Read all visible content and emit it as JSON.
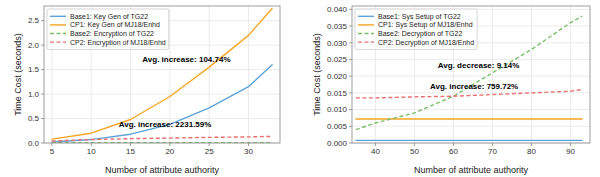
{
  "chart_data": [
    {
      "type": "line",
      "x": [
        5,
        10,
        15,
        20,
        25,
        30,
        33
      ],
      "series": [
        {
          "name": "Base1: Key Gen of TG22",
          "color": "#5ba3d9",
          "line_style": "solid",
          "values": [
            0.02,
            0.07,
            0.18,
            0.38,
            0.72,
            1.15,
            1.6
          ]
        },
        {
          "name": "CP1: Key Gen of MJ18/Enhd",
          "color": "#f5a623",
          "line_style": "solid",
          "values": [
            0.08,
            0.2,
            0.48,
            0.95,
            1.55,
            2.2,
            2.75
          ]
        },
        {
          "name": "Base2: Encryption of TG22",
          "color": "#7bbf6a",
          "line_style": "dashed",
          "values": [
            0.004,
            0.004,
            0.005,
            0.005,
            0.005,
            0.005,
            0.006
          ]
        },
        {
          "name": "CP2: Encryption of MJ18/Enhd",
          "color": "#e87070",
          "line_style": "dashed",
          "values": [
            0.04,
            0.07,
            0.09,
            0.1,
            0.115,
            0.125,
            0.135
          ]
        }
      ],
      "xlim": [
        4,
        34
      ],
      "xticks": [
        5,
        10,
        15,
        20,
        25,
        30
      ],
      "ylim": [
        0,
        2.8
      ],
      "yticks": [
        {
          "value": 0.0,
          "label": "0.0"
        },
        0.5,
        {
          "value": 1.0,
          "label": "1.0"
        },
        1.5,
        {
          "value": 2.0,
          "label": "2.0"
        },
        2.5
      ],
      "xlabel": "Number of attribute authority",
      "ylabel": "Time Cost (seconds)",
      "annotations": [
        {
          "text": "Avg. increase: 104.74%",
          "x": 16.5,
          "y": 1.65
        },
        {
          "text": "Avg. increase: 2231.59%",
          "x": 13.5,
          "y": 0.32
        }
      ],
      "grid": true,
      "legend": "upper left"
    },
    {
      "type": "line",
      "x": [
        35,
        40,
        50,
        60,
        70,
        80,
        90,
        93
      ],
      "series": [
        {
          "name": "Base1: Sys Setup of TG22",
          "color": "#5ba3d9",
          "line_style": "solid",
          "values": [
            0.0008,
            0.0008,
            0.0008,
            0.0008,
            0.0008,
            0.0008,
            0.0008,
            0.0008
          ]
        },
        {
          "name": "CP1: Sys Setup of MJ18/Enhd",
          "color": "#f5a623",
          "line_style": "solid",
          "values": [
            0.0072,
            0.0072,
            0.0072,
            0.0072,
            0.0072,
            0.0072,
            0.0072,
            0.0072
          ]
        },
        {
          "name": "Base2: Decryption of TG22",
          "color": "#7bbf6a",
          "line_style": "dashed",
          "values": [
            0.004,
            0.006,
            0.009,
            0.014,
            0.021,
            0.028,
            0.036,
            0.038
          ]
        },
        {
          "name": "CP2: Decryption of MJ18/Enhd",
          "color": "#e87070",
          "line_style": "dashed",
          "values": [
            0.0135,
            0.0135,
            0.0138,
            0.014,
            0.0145,
            0.015,
            0.0155,
            0.016
          ]
        }
      ],
      "xlim": [
        34,
        95
      ],
      "xticks": [
        40,
        50,
        60,
        70,
        80,
        90
      ],
      "ylim": [
        0,
        0.041
      ],
      "yticks": [
        {
          "value": 0.0,
          "label": "0.000"
        },
        0.005,
        {
          "value": 0.01,
          "label": "0.010"
        },
        0.015,
        {
          "value": 0.02,
          "label": "0.020"
        },
        0.025,
        {
          "value": 0.03,
          "label": "0.030"
        },
        0.035,
        {
          "value": 0.04,
          "label": "0.040"
        }
      ],
      "xlabel": "Number of attribute authority",
      "ylabel": "Time Cost (seconds)",
      "annotations": [
        {
          "text": "Avg. decrease: 9.14%",
          "x": 56,
          "y": 0.0225
        },
        {
          "text": "Avg. increase: 759.72%",
          "x": 54,
          "y": 0.0163
        }
      ],
      "grid": true,
      "legend": "upper left"
    }
  ]
}
